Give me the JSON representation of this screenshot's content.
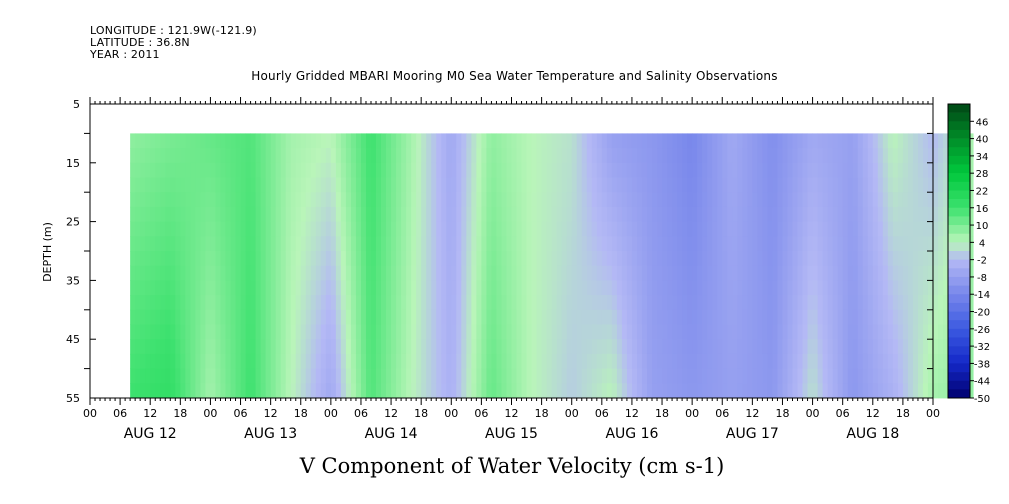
{
  "header": {
    "longitude": "LONGITUDE : 121.9W(-121.9)",
    "latitude": "LATITUDE : 36.8N",
    "year": "YEAR : 2011"
  },
  "chart_data": {
    "type": "heatmap",
    "title": "Hourly Gridded MBARI Mooring M0 Sea Water Temperature and Salinity Observations",
    "variable_label": "V Component of Water Velocity (cm s-1)",
    "ylabel": "DEPTH (m)",
    "ylim": [
      5,
      55
    ],
    "y_inverted": true,
    "y_ticks": [
      5,
      15,
      25,
      35,
      45,
      55
    ],
    "x_hour_ticks": [
      "00",
      "06",
      "12",
      "18",
      "00",
      "06",
      "12",
      "18",
      "00",
      "06",
      "12",
      "18",
      "00",
      "06",
      "12",
      "18",
      "00",
      "06",
      "12",
      "18",
      "00",
      "06",
      "12",
      "18",
      "00",
      "06",
      "12",
      "18",
      "00"
    ],
    "x_day_labels": [
      "AUG 12",
      "AUG 13",
      "AUG 14",
      "AUG 15",
      "AUG 16",
      "AUG 17",
      "AUG 18"
    ],
    "data_depth_range": [
      10,
      55
    ],
    "data_time_range_hours": [
      8,
      176
    ],
    "colorbar_ticks": [
      "46",
      "40",
      "34",
      "28",
      "22",
      "16",
      "10",
      "4",
      "-2",
      "-8",
      "-14",
      "-20",
      "-26",
      "-32",
      "-38",
      "-44",
      "-50"
    ],
    "colorbar_range": [
      -50,
      52
    ],
    "colors": {
      "positive_strong": "#00e040",
      "positive_weak": "#b0f0b0",
      "negative_weak": "#b0b8f0",
      "negative_strong": "#7080e8"
    },
    "column_profiles": [
      {
        "t": 8,
        "top": 8,
        "bottom": 16
      },
      {
        "t": 16,
        "top": 10,
        "bottom": 18
      },
      {
        "t": 24,
        "top": 12,
        "bottom": 6
      },
      {
        "t": 32,
        "top": 14,
        "bottom": 16
      },
      {
        "t": 40,
        "top": 6,
        "bottom": 4
      },
      {
        "t": 48,
        "top": 4,
        "bottom": -6
      },
      {
        "t": 56,
        "top": 16,
        "bottom": 14
      },
      {
        "t": 64,
        "top": 6,
        "bottom": 4
      },
      {
        "t": 72,
        "top": -6,
        "bottom": -4
      },
      {
        "t": 80,
        "top": 8,
        "bottom": 12
      },
      {
        "t": 88,
        "top": 4,
        "bottom": 4
      },
      {
        "t": 96,
        "top": 2,
        "bottom": 0
      },
      {
        "t": 104,
        "top": -8,
        "bottom": 4
      },
      {
        "t": 112,
        "top": -10,
        "bottom": -8
      },
      {
        "t": 120,
        "top": -14,
        "bottom": -10
      },
      {
        "t": 128,
        "top": -6,
        "bottom": -8
      },
      {
        "t": 136,
        "top": -12,
        "bottom": -10
      },
      {
        "t": 144,
        "top": -6,
        "bottom": 2
      },
      {
        "t": 152,
        "top": -8,
        "bottom": -10
      },
      {
        "t": 160,
        "top": 4,
        "bottom": -4
      },
      {
        "t": 168,
        "top": -2,
        "bottom": 6
      },
      {
        "t": 176,
        "top": 6,
        "bottom": 8
      }
    ]
  }
}
